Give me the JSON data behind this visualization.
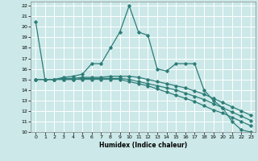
{
  "xlabel": "Humidex (Indice chaleur)",
  "xlim": [
    -0.5,
    23.5
  ],
  "ylim": [
    10,
    22.4
  ],
  "xticks": [
    0,
    1,
    2,
    3,
    4,
    5,
    6,
    7,
    8,
    9,
    10,
    11,
    12,
    13,
    14,
    15,
    16,
    17,
    18,
    19,
    20,
    21,
    22,
    23
  ],
  "yticks": [
    10,
    11,
    12,
    13,
    14,
    15,
    16,
    17,
    18,
    19,
    20,
    21,
    22
  ],
  "bg_color": "#cce8e8",
  "grid_color": "#ffffff",
  "line_color": "#2d7d78",
  "series": [
    [
      20.5,
      15.0,
      15.0,
      15.2,
      15.3,
      15.5,
      16.5,
      16.5,
      18.0,
      19.5,
      22.0,
      19.5,
      19.2,
      16.0,
      15.8,
      16.5,
      16.5,
      16.5,
      14.0,
      13.0,
      12.3,
      11.0,
      10.2,
      10.0
    ],
    [
      15.0,
      15.0,
      15.0,
      15.1,
      15.1,
      15.2,
      15.2,
      15.2,
      15.3,
      15.3,
      15.3,
      15.2,
      15.0,
      14.8,
      14.6,
      14.4,
      14.2,
      13.9,
      13.6,
      13.2,
      12.8,
      12.4,
      12.0,
      11.6
    ],
    [
      15.0,
      15.0,
      15.0,
      15.0,
      15.0,
      15.1,
      15.1,
      15.1,
      15.1,
      15.1,
      15.0,
      14.8,
      14.6,
      14.4,
      14.2,
      14.0,
      13.7,
      13.4,
      13.1,
      12.7,
      12.3,
      11.9,
      11.5,
      11.1
    ],
    [
      15.0,
      15.0,
      15.0,
      15.0,
      15.0,
      15.0,
      15.0,
      15.0,
      15.0,
      15.0,
      14.8,
      14.6,
      14.4,
      14.1,
      13.8,
      13.5,
      13.2,
      12.9,
      12.5,
      12.1,
      11.8,
      11.4,
      11.0,
      10.6
    ]
  ]
}
